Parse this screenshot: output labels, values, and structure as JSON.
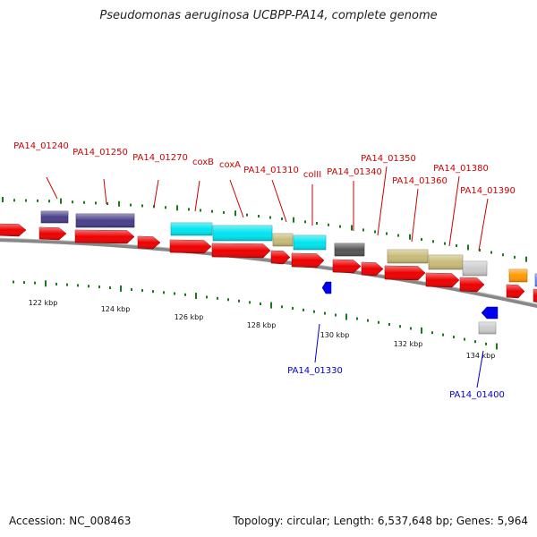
{
  "header": {
    "title": "Pseudomonas aeruginosa UCBPP-PA14, complete genome"
  },
  "footer": {
    "accession": "Accession: NC_008463",
    "topology": "Topology: circular; Length: 6,537,648 bp; Genes: 5,964"
  },
  "map": {
    "scale_labels": [
      {
        "label": "122 kbp",
        "kbp": 122
      },
      {
        "label": "124 kbp",
        "kbp": 124
      },
      {
        "label": "126 kbp",
        "kbp": 126
      },
      {
        "label": "128 kbp",
        "kbp": 128
      },
      {
        "label": "130 kbp",
        "kbp": 130
      },
      {
        "label": "132 kbp",
        "kbp": 132
      },
      {
        "label": "134 kbp",
        "kbp": 134
      }
    ],
    "colors": {
      "label_top": "#cc0000",
      "label_bottom": "#0000cc",
      "backbone": "#808080",
      "tick_green": "#1a7a1a"
    },
    "gene_labels_top": [
      "PA14_01240",
      "PA14_01250",
      "PA14_01270",
      "coxB",
      "coxA",
      "PA14_01310",
      "colII",
      "PA14_01340",
      "PA14_01350",
      "PA14_01360",
      "PA14_01380",
      "PA14_01390"
    ],
    "gene_labels_bottom": [
      "PA14_01330",
      "PA14_01400"
    ]
  }
}
